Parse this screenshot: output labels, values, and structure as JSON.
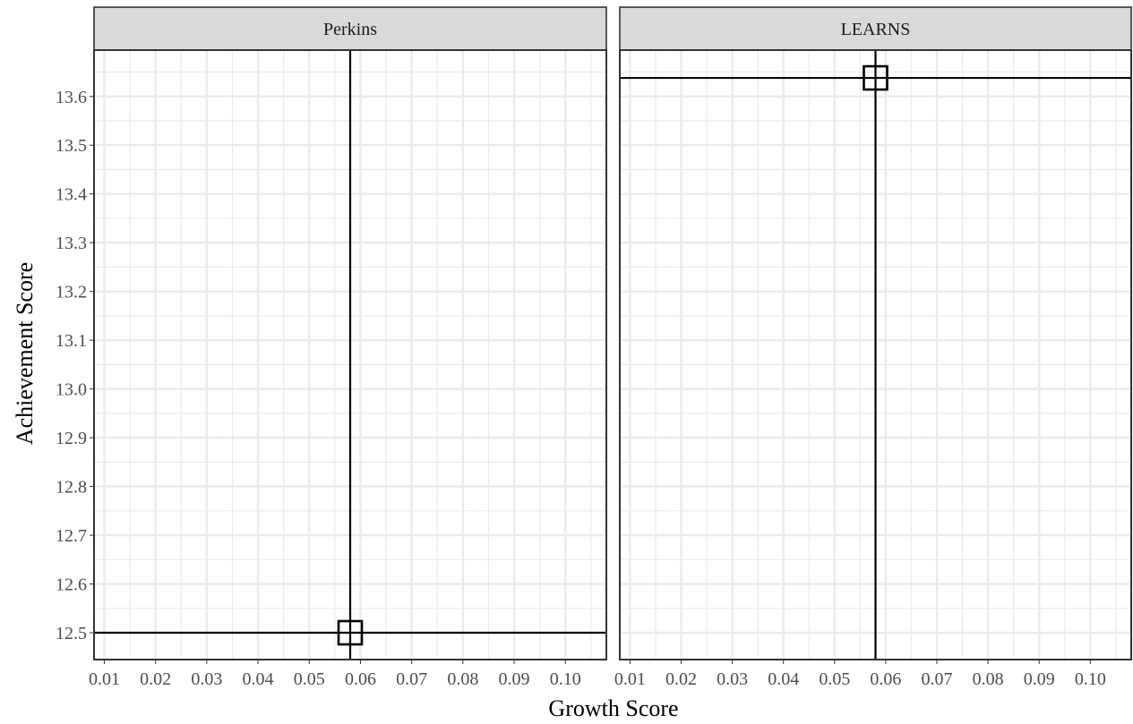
{
  "chart_data": {
    "type": "scatter",
    "xlabel": "Growth Score",
    "ylabel": "Achievement Score",
    "xlim": [
      0.008,
      0.108
    ],
    "ylim": [
      12.445,
      13.695
    ],
    "x_ticks": [
      0.01,
      0.02,
      0.03,
      0.04,
      0.05,
      0.06,
      0.07,
      0.08,
      0.09,
      0.1
    ],
    "x_tick_labels": [
      "0.01",
      "0.02",
      "0.03",
      "0.04",
      "0.05",
      "0.06",
      "0.07",
      "0.08",
      "0.09",
      "0.10"
    ],
    "y_ticks": [
      12.5,
      12.6,
      12.7,
      12.8,
      12.9,
      13.0,
      13.1,
      13.2,
      13.3,
      13.4,
      13.5,
      13.6
    ],
    "y_tick_labels": [
      "12.5",
      "12.6",
      "12.7",
      "12.8",
      "12.9",
      "13.0",
      "13.1",
      "13.2",
      "13.3",
      "13.4",
      "13.5",
      "13.6"
    ],
    "grid": true,
    "marker": "open-square",
    "panels": [
      {
        "name": "Perkins",
        "x": 0.058,
        "y": 12.5,
        "vline": 0.058,
        "hline": 12.5
      },
      {
        "name": "LEARNS",
        "x": 0.058,
        "y": 13.638,
        "vline": 0.058,
        "hline": 13.638
      }
    ]
  },
  "colors": {
    "strip_fill": "#d9d9d9",
    "panel_border": "#333333",
    "grid_major": "#ebebeb",
    "grid_minor": "#ebebeb",
    "reference_line": "#000000",
    "marker": "#000000"
  }
}
